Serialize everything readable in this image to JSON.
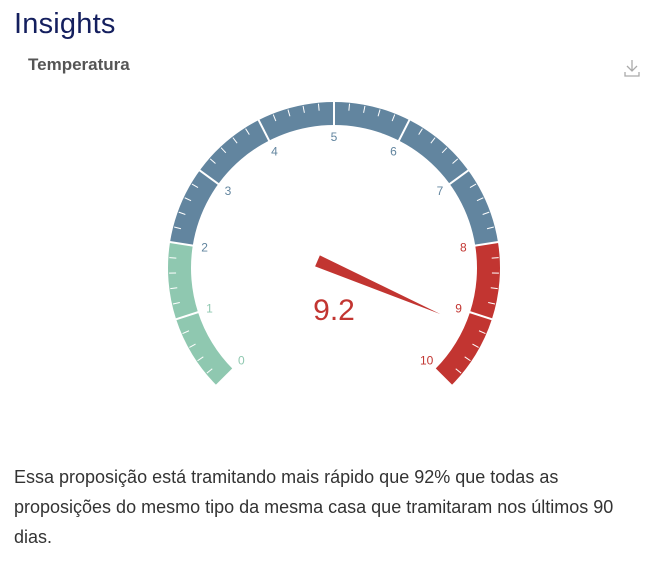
{
  "header": {
    "title": "Insights"
  },
  "chart_data": {
    "type": "gauge",
    "title": "Temperatura",
    "min": 0,
    "max": 10,
    "value": 9.2,
    "value_label": "9.2",
    "tick_labels": [
      "0",
      "1",
      "2",
      "3",
      "4",
      "5",
      "6",
      "7",
      "8",
      "9",
      "10"
    ],
    "bands": [
      {
        "from": 0,
        "to": 2,
        "color": "#8fc8b0"
      },
      {
        "from": 2,
        "to": 8,
        "color": "#62859f"
      },
      {
        "from": 8,
        "to": 10,
        "color": "#c23531"
      }
    ],
    "pointer_color": "#c23531"
  },
  "toolbar": {
    "download_icon": "download-icon"
  },
  "description": "Essa proposição está tramitando mais rápido que 92% que todas as proposições do mesmo tipo da mesma casa que tramitaram nos últimos 90 dias."
}
